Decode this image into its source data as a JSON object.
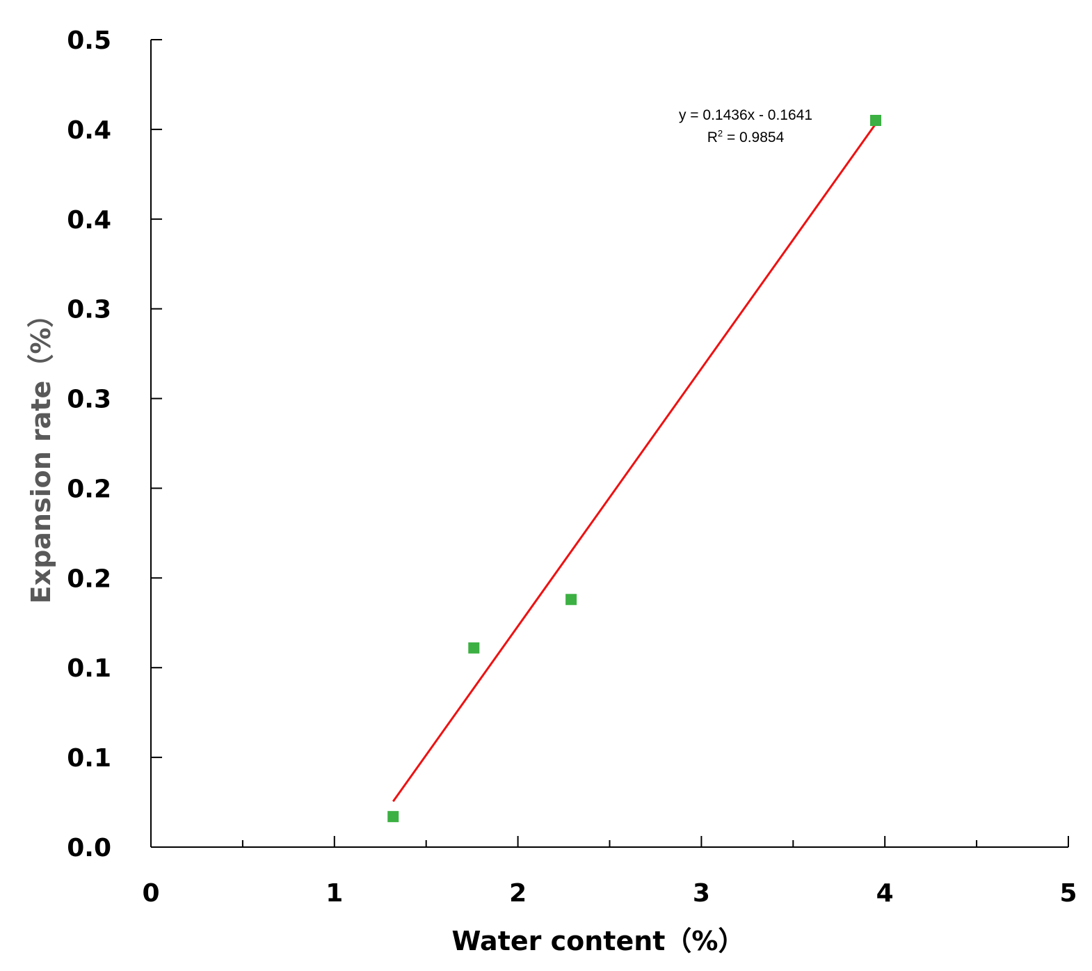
{
  "chart_data": {
    "type": "scatter",
    "title": "",
    "xlabel": "Water content（%）",
    "ylabel": "Expansion rate（%）",
    "xlim": [
      0,
      5
    ],
    "ylim": [
      0,
      0.45
    ],
    "x_major_ticks": [
      0,
      1,
      2,
      3,
      4,
      5
    ],
    "x_minor_ticks": [
      0.5,
      1.5,
      2.5,
      3.5,
      4.5
    ],
    "y_ticks": [
      {
        "value": 0.0,
        "label": "0.0"
      },
      {
        "value": 0.05,
        "label": "0.1"
      },
      {
        "value": 0.1,
        "label": "0.1"
      },
      {
        "value": 0.15,
        "label": "0.2"
      },
      {
        "value": 0.2,
        "label": "0.2"
      },
      {
        "value": 0.25,
        "label": "0.3"
      },
      {
        "value": 0.3,
        "label": "0.3"
      },
      {
        "value": 0.35,
        "label": "0.4"
      },
      {
        "value": 0.4,
        "label": "0.4"
      },
      {
        "value": 0.45,
        "label": "0.5"
      }
    ],
    "grid": false,
    "legend": "none",
    "series": [
      {
        "marker": "square",
        "color": "#3cb043",
        "points": [
          {
            "x": 1.32,
            "y": 0.017
          },
          {
            "x": 1.76,
            "y": 0.111
          },
          {
            "x": 2.29,
            "y": 0.138
          },
          {
            "x": 3.95,
            "y": 0.405
          }
        ]
      }
    ],
    "trendline": {
      "type": "linear",
      "color": "#ee1111",
      "slope": 0.1436,
      "intercept": -0.1641,
      "x_range": [
        1.32,
        3.95
      ],
      "equation": "y = 0.1436x - 0.1641",
      "r_squared_prefix": "R",
      "r_squared_exp": "2",
      "r_squared_value": " = 0.9854"
    }
  }
}
